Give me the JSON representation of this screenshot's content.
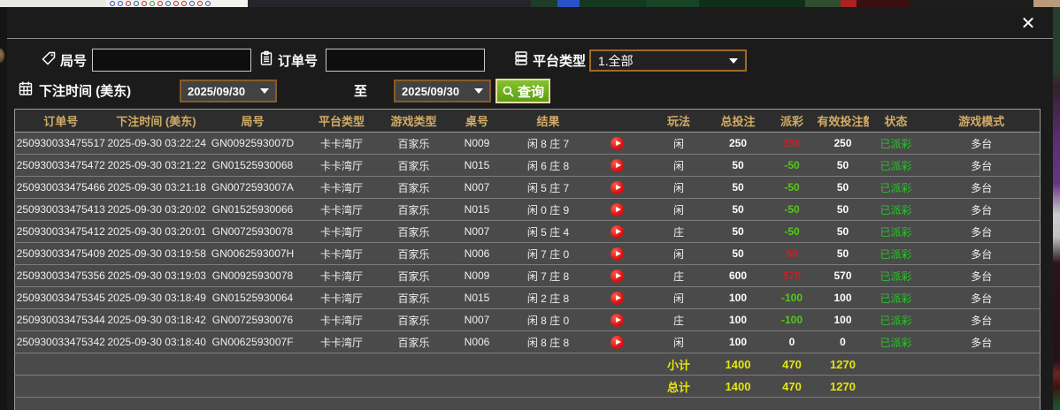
{
  "window": {
    "close_icon": "✕"
  },
  "colors": {
    "header_text": "#d2ac66",
    "payout_positive": "#c52129",
    "payout_negative": "#55c818",
    "status_paid": "#29c329",
    "summary_text": "#e6e60a",
    "query_button": "#6bb01e",
    "dropdown_border": "#a06a28"
  },
  "filters": {
    "game_no": {
      "label": "局号",
      "value": ""
    },
    "order_no": {
      "label": "订单号",
      "value": ""
    },
    "platform": {
      "label": "平台类型",
      "value": "1.全部"
    },
    "bet_time": {
      "label": "下注时间 (美东)",
      "from": "2025/09/30",
      "to_label": "至",
      "to": "2025/09/30"
    },
    "query": {
      "label": "查询"
    }
  },
  "table": {
    "columns": {
      "order_no": "订单号",
      "bet_time": "下注时间 (美东)",
      "game_no": "局号",
      "platform": "平台类型",
      "game_type": "游戏类型",
      "table_no": "桌号",
      "result": "结果",
      "replay": "",
      "play_type": "玩法",
      "bet_total": "总投注",
      "payout": "派彩",
      "valid_bet": "有效投注额",
      "status": "状态",
      "mode": "游戏模式"
    },
    "rows": [
      {
        "order_no": "250930033475517",
        "bet_time": "2025-09-30 03:22:24",
        "game_no": "GN0092593007D",
        "platform": "卡卡湾厅",
        "game_type": "百家乐",
        "table_no": "N009",
        "result": "闲 8 庄 7",
        "play_type": "闲",
        "bet_total": "250",
        "payout": "250",
        "payout_color": "red",
        "valid_bet": "250",
        "status": "已派彩",
        "mode": "多台"
      },
      {
        "order_no": "250930033475472",
        "bet_time": "2025-09-30 03:21:22",
        "game_no": "GN01525930068",
        "platform": "卡卡湾厅",
        "game_type": "百家乐",
        "table_no": "N015",
        "result": "闲 6 庄 8",
        "play_type": "闲",
        "bet_total": "50",
        "payout": "-50",
        "payout_color": "green",
        "valid_bet": "50",
        "status": "已派彩",
        "mode": "多台"
      },
      {
        "order_no": "250930033475466",
        "bet_time": "2025-09-30 03:21:18",
        "game_no": "GN0072593007A",
        "platform": "卡卡湾厅",
        "game_type": "百家乐",
        "table_no": "N007",
        "result": "闲 5 庄 7",
        "play_type": "闲",
        "bet_total": "50",
        "payout": "-50",
        "payout_color": "green",
        "valid_bet": "50",
        "status": "已派彩",
        "mode": "多台"
      },
      {
        "order_no": "250930033475413",
        "bet_time": "2025-09-30 03:20:02",
        "game_no": "GN01525930066",
        "platform": "卡卡湾厅",
        "game_type": "百家乐",
        "table_no": "N015",
        "result": "闲 0 庄 9",
        "play_type": "闲",
        "bet_total": "50",
        "payout": "-50",
        "payout_color": "green",
        "valid_bet": "50",
        "status": "已派彩",
        "mode": "多台"
      },
      {
        "order_no": "250930033475412",
        "bet_time": "2025-09-30 03:20:01",
        "game_no": "GN00725930078",
        "platform": "卡卡湾厅",
        "game_type": "百家乐",
        "table_no": "N007",
        "result": "闲 5 庄 4",
        "play_type": "庄",
        "bet_total": "50",
        "payout": "-50",
        "payout_color": "green",
        "valid_bet": "50",
        "status": "已派彩",
        "mode": "多台"
      },
      {
        "order_no": "250930033475409",
        "bet_time": "2025-09-30 03:19:58",
        "game_no": "GN0062593007H",
        "platform": "卡卡湾厅",
        "game_type": "百家乐",
        "table_no": "N006",
        "result": "闲 7 庄 0",
        "play_type": "闲",
        "bet_total": "50",
        "payout": "50",
        "payout_color": "red",
        "valid_bet": "50",
        "status": "已派彩",
        "mode": "多台"
      },
      {
        "order_no": "250930033475356",
        "bet_time": "2025-09-30 03:19:03",
        "game_no": "GN00925930078",
        "platform": "卡卡湾厅",
        "game_type": "百家乐",
        "table_no": "N009",
        "result": "闲 7 庄 8",
        "play_type": "庄",
        "bet_total": "600",
        "payout": "570",
        "payout_color": "red",
        "valid_bet": "570",
        "status": "已派彩",
        "mode": "多台"
      },
      {
        "order_no": "250930033475345",
        "bet_time": "2025-09-30 03:18:49",
        "game_no": "GN01525930064",
        "platform": "卡卡湾厅",
        "game_type": "百家乐",
        "table_no": "N015",
        "result": "闲 2 庄 8",
        "play_type": "闲",
        "bet_total": "100",
        "payout": "-100",
        "payout_color": "green",
        "valid_bet": "100",
        "status": "已派彩",
        "mode": "多台"
      },
      {
        "order_no": "250930033475344",
        "bet_time": "2025-09-30 03:18:42",
        "game_no": "GN00725930076",
        "platform": "卡卡湾厅",
        "game_type": "百家乐",
        "table_no": "N007",
        "result": "闲 8 庄 0",
        "play_type": "庄",
        "bet_total": "100",
        "payout": "-100",
        "payout_color": "green",
        "valid_bet": "100",
        "status": "已派彩",
        "mode": "多台"
      },
      {
        "order_no": "250930033475342",
        "bet_time": "2025-09-30 03:18:40",
        "game_no": "GN0062593007F",
        "platform": "卡卡湾厅",
        "game_type": "百家乐",
        "table_no": "N006",
        "result": "闲 8 庄 8",
        "play_type": "闲",
        "bet_total": "100",
        "payout": "0",
        "payout_color": "neutral",
        "valid_bet": "0",
        "status": "已派彩",
        "mode": "多台"
      }
    ],
    "summary": [
      {
        "label": "小计",
        "bet_total": "1400",
        "payout": "470",
        "valid_bet": "1270"
      },
      {
        "label": "总计",
        "bet_total": "1400",
        "payout": "470",
        "valid_bet": "1270"
      }
    ]
  }
}
